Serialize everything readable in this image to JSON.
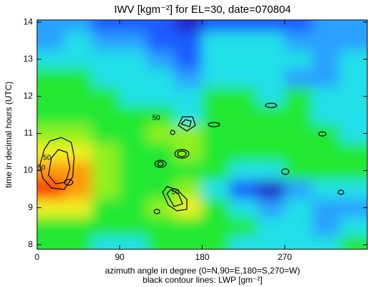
{
  "chart_data": {
    "type": "heatmap",
    "title": "IWV [kgm⁻²] for EL=30, date=070804",
    "x_label": "azimuth angle in degree (0=N,90=E,180=S,270=W)",
    "x_label_2": "black contour lines: LWP [gm⁻²]",
    "y_label": "time in decimal hours (UTC)",
    "x": [
      15,
      45,
      75,
      105,
      135,
      165,
      195,
      225,
      255,
      285,
      315,
      345
    ],
    "y": [
      8.0,
      8.5,
      9.0,
      9.5,
      10.0,
      10.5,
      11.0,
      11.5,
      12.0,
      12.5,
      13.0,
      13.5,
      14.0
    ],
    "z": [
      [
        5,
        5,
        4,
        4,
        5,
        5,
        5,
        4,
        4,
        4,
        4,
        5
      ],
      [
        5,
        5,
        5,
        5,
        5,
        5,
        5,
        5,
        4,
        4,
        3,
        4
      ],
      [
        7,
        7,
        5,
        5,
        6,
        7,
        5,
        4,
        3,
        4,
        3,
        3
      ],
      [
        9,
        8,
        6,
        5,
        5,
        6,
        4,
        2,
        1,
        3,
        4,
        4
      ],
      [
        8,
        8,
        6,
        5,
        5,
        5,
        5,
        4,
        4,
        5,
        5,
        5
      ],
      [
        7,
        7,
        6,
        5,
        5,
        6,
        5,
        5,
        5,
        5,
        5,
        5
      ],
      [
        6,
        6,
        5,
        5,
        6,
        6,
        5,
        5,
        5,
        5,
        5,
        4
      ],
      [
        5,
        5,
        5,
        5,
        5,
        4,
        5,
        5,
        5,
        5,
        4,
        4
      ],
      [
        5,
        5,
        5,
        4,
        4,
        4,
        5,
        5,
        4,
        5,
        4,
        4
      ],
      [
        5,
        5,
        4,
        4,
        4,
        3,
        4,
        4,
        4,
        3,
        3,
        4
      ],
      [
        4,
        4,
        4,
        4,
        3,
        2,
        4,
        4,
        4,
        4,
        3,
        4
      ],
      [
        3,
        4,
        3,
        3,
        2,
        2,
        4,
        4,
        4,
        3,
        3,
        3
      ],
      [
        3,
        3,
        2,
        2,
        2,
        1,
        2,
        2,
        2,
        2,
        3,
        3
      ]
    ],
    "zlim": [
      0,
      10
    ],
    "colors": [
      "#5a0f7a",
      "#2020c8",
      "#1e5cff",
      "#2aa0ff",
      "#20e0e8",
      "#20e830",
      "#90f020",
      "#f0f020",
      "#ff9a10",
      "#ff2a00",
      "#c00000"
    ],
    "xlim": [
      0,
      360
    ],
    "xticks": [
      0,
      90,
      180,
      270
    ],
    "ylim": [
      7.88,
      14.06
    ],
    "yticks": [
      8,
      9,
      10,
      11,
      12,
      13,
      14
    ],
    "annotations": [
      "50",
      "50",
      "50",
      "50"
    ]
  }
}
